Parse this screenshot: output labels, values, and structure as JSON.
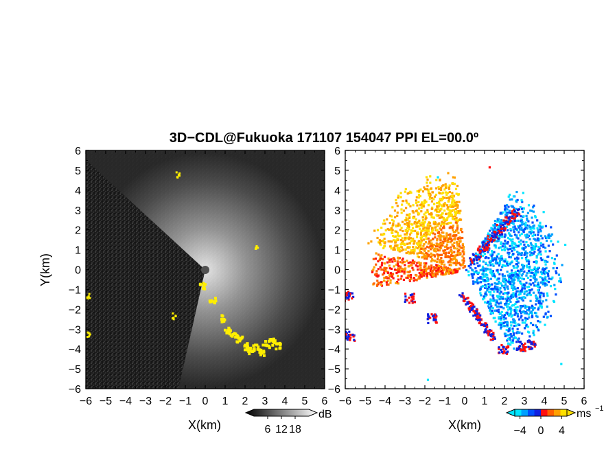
{
  "title": "3D−CDL@Fukuoka 171107 154047 PPI EL=00.0º",
  "chart_data": [
    {
      "type": "heatmap",
      "panel": "left",
      "xlabel": "X(km)",
      "ylabel": "Y(km)",
      "xlim": [
        -6,
        6
      ],
      "ylim": [
        -6,
        6
      ],
      "xticks": [
        -6,
        -5,
        -4,
        -3,
        -2,
        -1,
        0,
        1,
        2,
        3,
        4,
        5,
        6
      ],
      "yticks": [
        -6,
        -5,
        -4,
        -3,
        -2,
        -1,
        0,
        1,
        2,
        3,
        4,
        5,
        6
      ],
      "colorbar": {
        "unit": "dB",
        "ticks": [
          6,
          12,
          18
        ],
        "colormap": "grayscale (black to white)"
      },
      "highlight_color": "#ffee00",
      "background_color": "#202020"
    },
    {
      "type": "heatmap",
      "panel": "right",
      "xlabel": "X(km)",
      "ylabel": "",
      "xlim": [
        -6,
        6
      ],
      "ylim": [
        -6,
        6
      ],
      "xticks": [
        -6,
        -5,
        -4,
        -3,
        -2,
        -1,
        0,
        1,
        2,
        3,
        4,
        5,
        6
      ],
      "yticks": [
        -6,
        -5,
        -4,
        -3,
        -2,
        -1,
        0,
        1,
        2,
        3,
        4,
        5,
        6
      ],
      "colorbar": {
        "unit": "ms",
        "unit_exponent": "−1",
        "ticks": [
          -4,
          0,
          4
        ],
        "colormap": "diverging (cyan-blue to red-yellow)"
      },
      "background_color": "#ffffff"
    }
  ],
  "colors": {
    "cbar_neg": [
      "#00e5ff",
      "#00a0ff",
      "#0050ff",
      "#1020e0"
    ],
    "cbar_pos": [
      "#ff1010",
      "#ff6000",
      "#ffa000",
      "#ffe000"
    ]
  }
}
